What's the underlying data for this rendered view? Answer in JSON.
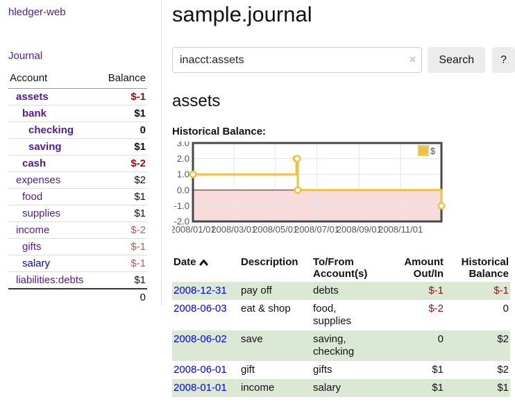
{
  "app": {
    "brand": "hledger-web"
  },
  "colors": {
    "link_purple": "#551a8b",
    "link_blue": "#0000e6",
    "negative_strong": "#8b1414",
    "negative_soft": "#b05f5f",
    "row_green": "#dbe8d4",
    "accent_gold": "#edc240"
  },
  "sidebar": {
    "nav": [
      {
        "label": "Journal"
      }
    ],
    "table_headers": {
      "account": "Account",
      "balance": "Balance"
    },
    "accounts": [
      {
        "name": "assets",
        "depth": 1,
        "bold": true,
        "balance": "$-1",
        "balance_tone": "neg-strong",
        "link_tone": "visited"
      },
      {
        "name": "bank",
        "depth": 2,
        "bold": true,
        "balance": "$1",
        "balance_tone": "normal",
        "link_tone": "visited"
      },
      {
        "name": "checking",
        "depth": 3,
        "bold": true,
        "balance": "0",
        "balance_tone": "normal",
        "link_tone": "visited"
      },
      {
        "name": "saving",
        "depth": 3,
        "bold": true,
        "balance": "$1",
        "balance_tone": "normal",
        "link_tone": "visited"
      },
      {
        "name": "cash",
        "depth": 2,
        "bold": true,
        "balance": "$-2",
        "balance_tone": "neg-strong",
        "link_tone": "visited"
      },
      {
        "name": "expenses",
        "depth": 1,
        "bold": false,
        "balance": "$2",
        "balance_tone": "normal",
        "link_tone": "visited"
      },
      {
        "name": "food",
        "depth": 2,
        "bold": false,
        "balance": "$1",
        "balance_tone": "normal",
        "link_tone": "visited"
      },
      {
        "name": "supplies",
        "depth": 2,
        "bold": false,
        "balance": "$1",
        "balance_tone": "normal",
        "link_tone": "visited"
      },
      {
        "name": "income",
        "depth": 1,
        "bold": false,
        "balance": "$-2",
        "balance_tone": "neg-soft",
        "link_tone": "visited"
      },
      {
        "name": "gifts",
        "depth": 2,
        "bold": false,
        "balance": "$-1",
        "balance_tone": "neg-soft",
        "link_tone": "visited"
      },
      {
        "name": "salary",
        "depth": 2,
        "bold": false,
        "balance": "$-1",
        "balance_tone": "neg-soft",
        "link_tone": "unvisited"
      },
      {
        "name": "liabilities:debts",
        "depth": 1,
        "bold": false,
        "balance": "$1",
        "balance_tone": "normal",
        "link_tone": "visited"
      }
    ],
    "total": "0"
  },
  "header": {
    "title": "sample.journal"
  },
  "search": {
    "query": "inacct:assets",
    "clear_label": "×",
    "button_label": "Search",
    "help_label": "?"
  },
  "account_view": {
    "heading": "assets",
    "chart_label": "Historical Balance:"
  },
  "chart_data": {
    "type": "line",
    "title": "Historical Balance:",
    "series": [
      {
        "name": "$",
        "color": "#edc240",
        "marker_fill": "#ffffff",
        "steps": true,
        "points": [
          [
            "2008-01-01",
            1
          ],
          [
            "2008-06-01",
            2
          ],
          [
            "2008-06-02",
            2
          ],
          [
            "2008-06-03",
            0
          ],
          [
            "2008-12-31",
            -1
          ]
        ]
      }
    ],
    "x_range": [
      "2008-01-01",
      "2008-12-31"
    ],
    "x_ticks": [
      {
        "date": "2008-01-01",
        "label": "2008/01/01"
      },
      {
        "date": "2008-03-01",
        "label": "2008/03/01"
      },
      {
        "date": "2008-05-01",
        "label": "2008/05/01"
      },
      {
        "date": "2008-07-01",
        "label": "2008/07/01"
      },
      {
        "date": "2008-09-01",
        "label": "2008/09/01"
      },
      {
        "date": "2008-11-01",
        "label": "2008/11/01"
      }
    ],
    "y_ticks": [
      {
        "value": 3,
        "label": "3.0"
      },
      {
        "value": 2,
        "label": "2.0"
      },
      {
        "value": 1,
        "label": "1.0"
      },
      {
        "value": 0,
        "label": "0.0"
      },
      {
        "value": -1,
        "label": "-1.0"
      },
      {
        "value": -2,
        "label": "-2.0"
      }
    ],
    "ylim": [
      -2,
      3
    ],
    "grid": true,
    "legend_position": "top-right",
    "negative_region_fill": "#f8dcdc",
    "zero_line_color": "#8b1a1a",
    "grid_color": "#e5e5e5",
    "border_color": "#474747",
    "tick_color": "#545454"
  },
  "transactions": {
    "headers": {
      "date": "Date",
      "description": "Description",
      "accounts": "To/From Account(s)",
      "amount": "Amount Out/In",
      "balance": "Historical Balance"
    },
    "rows": [
      {
        "date": "2008-12-31",
        "description": "pay off",
        "accounts": "debts",
        "amount": "$-1",
        "amount_tone": "neg-strong",
        "balance": "$-1",
        "balance_tone": "neg-strong"
      },
      {
        "date": "2008-06-03",
        "description": "eat & shop",
        "accounts": "food, supplies",
        "amount": "$-2",
        "amount_tone": "neg-strong",
        "balance": "0",
        "balance_tone": "normal"
      },
      {
        "date": "2008-06-02",
        "description": "save",
        "accounts": "saving, checking",
        "amount": "0",
        "amount_tone": "normal",
        "balance": "$2",
        "balance_tone": "normal"
      },
      {
        "date": "2008-06-01",
        "description": "gift",
        "accounts": "gifts",
        "amount": "$1",
        "amount_tone": "normal",
        "balance": "$2",
        "balance_tone": "normal"
      },
      {
        "date": "2008-01-01",
        "description": "income",
        "accounts": "salary",
        "amount": "$1",
        "amount_tone": "normal",
        "balance": "$1",
        "balance_tone": "normal"
      }
    ]
  }
}
